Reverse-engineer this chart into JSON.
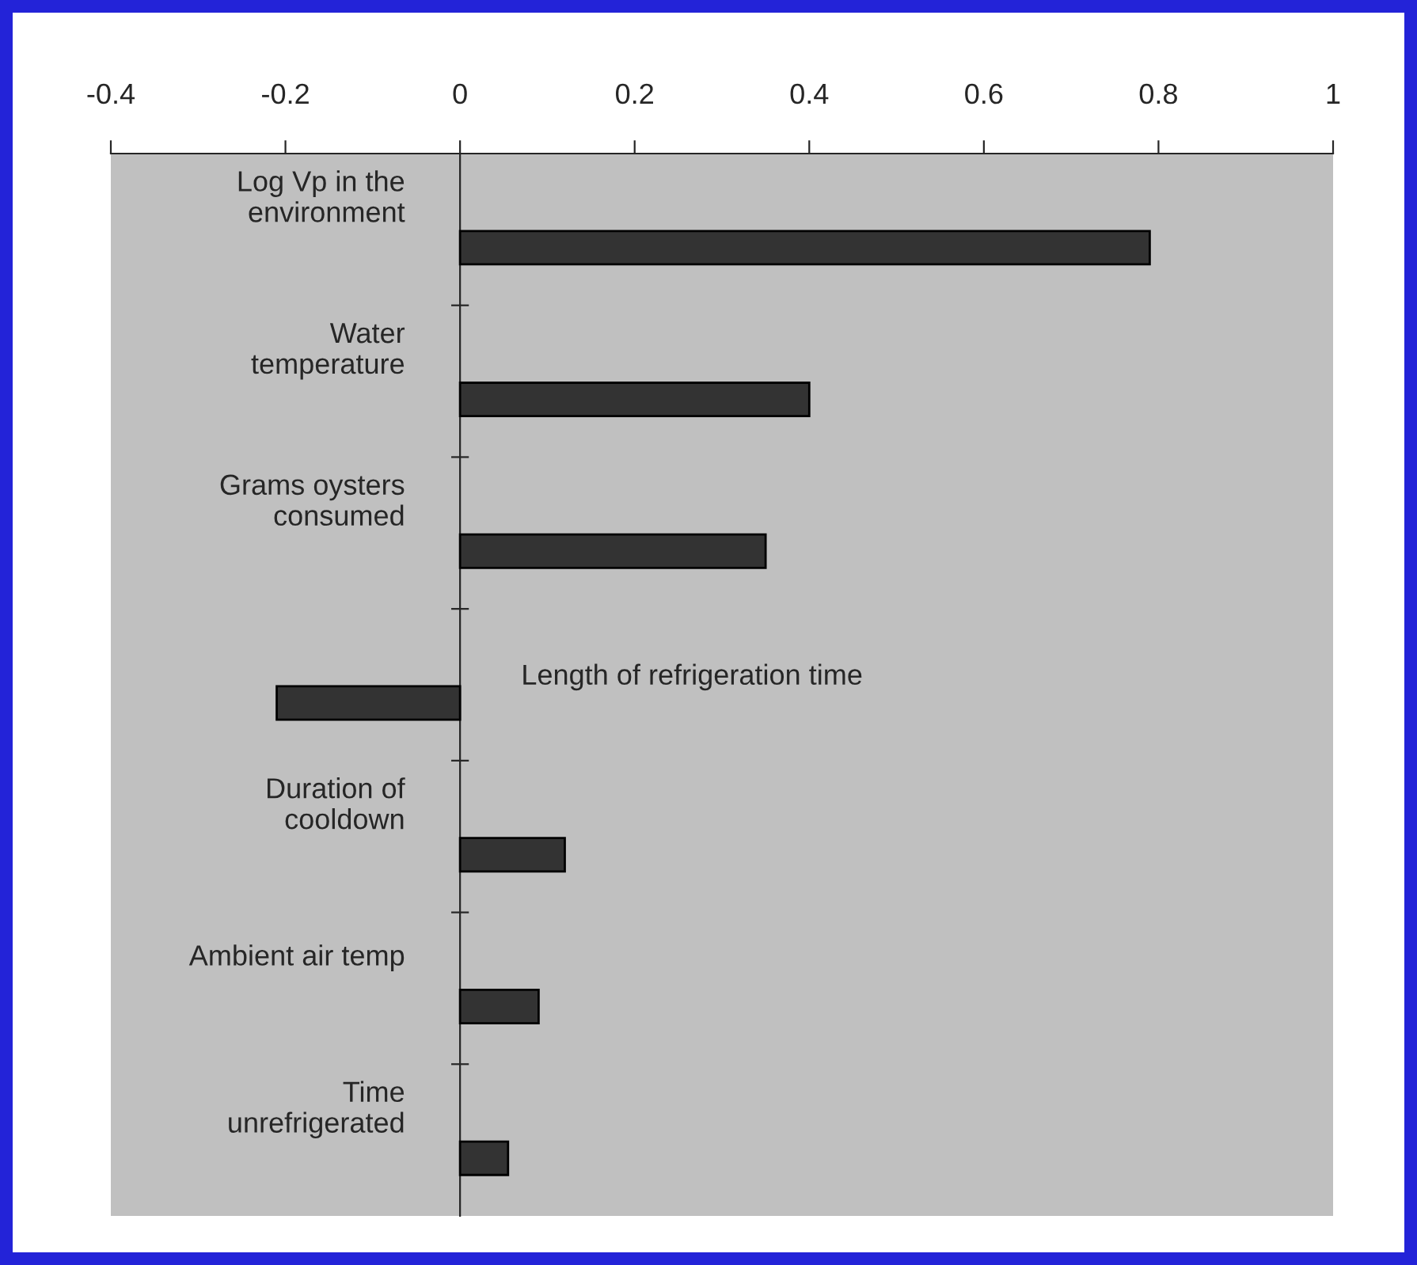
{
  "chart_data": {
    "type": "bar",
    "orientation": "horizontal",
    "categories": [
      "Log Vp in the\nenvironment",
      "Water\ntemperature",
      "Grams oysters\nconsumed",
      "Length of refrigeration time",
      "Duration of\ncooldown",
      "Ambient air temp",
      "Time\nunrefrigerated"
    ],
    "values": [
      0.79,
      0.4,
      0.35,
      -0.21,
      0.12,
      0.09,
      0.055
    ],
    "color": "#333333",
    "xlim": [
      -0.4,
      1
    ],
    "xticks": [
      -0.4,
      -0.2,
      0,
      0.2,
      0.4,
      0.6,
      0.8,
      1
    ],
    "grid": false,
    "legend": false
  }
}
